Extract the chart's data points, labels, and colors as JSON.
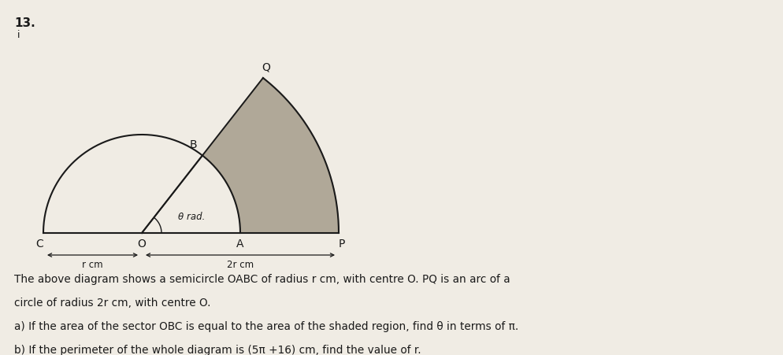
{
  "fig_width": 9.95,
  "fig_height": 4.51,
  "dpi": 100,
  "bg_color": "#f0ece4",
  "r_scale": 1.0,
  "theta_deg": 52,
  "label_13": "13.",
  "label_i": "i",
  "label_C": "C",
  "label_O": "O",
  "label_A": "A",
  "label_P": "P",
  "label_B": "B",
  "label_Q": "Q",
  "label_theta": "θ rad.",
  "shading_color": "#b0a898",
  "line_color": "#1a1a1a",
  "text_line1": "The above diagram shows a semicircle OABC of radius r cm, with centre O. PQ is an arc of a",
  "text_line2": "circle of radius 2r cm, with centre O.",
  "text_line3": "a) If the area of the sector OBC is equal to the area of the shaded region, find θ in terms of π.",
  "text_line4": "b) If the perimeter of the whole diagram is (5π +16) cm, find the value of r.",
  "diagram_ox": 1.8,
  "diagram_oy": 1.55,
  "scale": 1.25
}
